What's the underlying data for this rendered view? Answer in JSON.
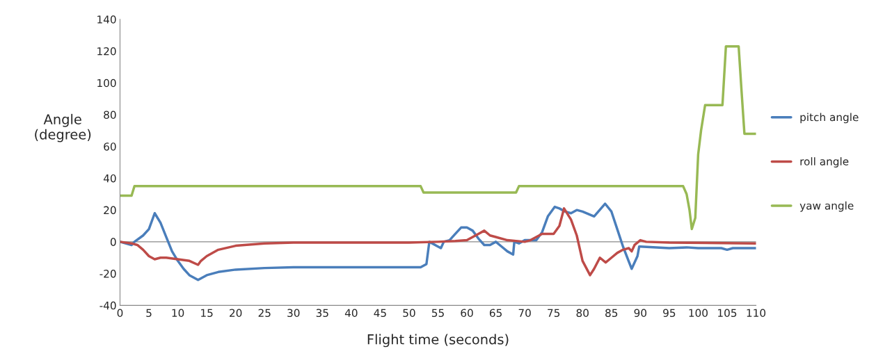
{
  "chart_data": {
    "type": "line",
    "xlabel": "Flight time (seconds)",
    "ylabel": "Angle\n(degree)",
    "xlim": [
      0,
      110
    ],
    "xticks": [
      0,
      5,
      10,
      15,
      20,
      25,
      30,
      35,
      40,
      45,
      50,
      55,
      60,
      65,
      70,
      75,
      80,
      85,
      90,
      95,
      100,
      105,
      110
    ],
    "ylim": [
      -40,
      140
    ],
    "yticks": [
      -40,
      -20,
      0,
      20,
      40,
      60,
      80,
      100,
      120,
      140
    ],
    "grid": false,
    "ref_lines": [
      {
        "axis": "y",
        "value": 0,
        "color": "#888888"
      }
    ],
    "legend": "right",
    "marker": "none",
    "line_style": "solid",
    "series": [
      {
        "name": "pitch angle",
        "color": "#4a7ebb",
        "x": [
          0,
          2,
          2.5,
          4,
          5,
          6,
          7,
          8,
          9,
          10,
          11,
          12,
          13.5,
          15,
          17,
          20,
          25,
          30,
          40,
          48,
          52,
          53,
          53.5,
          55,
          55.5,
          56,
          57,
          58,
          59,
          60,
          61,
          62,
          63,
          64,
          65,
          66,
          67,
          68,
          68.2,
          69,
          70,
          72,
          73,
          74,
          75.2,
          76,
          77,
          78,
          79,
          80,
          82,
          83.9,
          85,
          86,
          87,
          88.5,
          89.5,
          89.8,
          90,
          95,
          98,
          100,
          104,
          105,
          106,
          110
        ],
        "values": [
          0,
          -2,
          0,
          4,
          8,
          18,
          12,
          3,
          -6,
          -12,
          -17,
          -21,
          -24,
          -21,
          -19,
          -17.5,
          -16.5,
          -16,
          -16,
          -16,
          -16,
          -14,
          0,
          -3,
          -4,
          0,
          1,
          5,
          9,
          9,
          7,
          2,
          -2,
          -2,
          0,
          -3,
          -6,
          -8,
          0,
          -1,
          1,
          1,
          6,
          16,
          22,
          21,
          19,
          18,
          20,
          19,
          16,
          24,
          19,
          8,
          -3,
          -17,
          -9,
          -3,
          -3,
          -4,
          -3.5,
          -4,
          -4,
          -5,
          -4,
          -4
        ]
      },
      {
        "name": "roll angle",
        "color": "#be4b48",
        "x": [
          0,
          2,
          3,
          4,
          5,
          6,
          7,
          8,
          10,
          12,
          13.5,
          14,
          15,
          17,
          20,
          25,
          30,
          50,
          55,
          58,
          60,
          61,
          62,
          63,
          64,
          65,
          67,
          70,
          71,
          72,
          73,
          75,
          76,
          76.8,
          78,
          79,
          80,
          81.3,
          82,
          83,
          84,
          85,
          86,
          87,
          88,
          88.5,
          89,
          90,
          91,
          95,
          110
        ],
        "values": [
          0,
          -1,
          -2,
          -5,
          -9,
          -11,
          -10,
          -10,
          -11,
          -12,
          -14.5,
          -12,
          -9,
          -5,
          -2.5,
          -1,
          -0.5,
          -0.5,
          0,
          0.5,
          1,
          3,
          5,
          7,
          4,
          3,
          1,
          0,
          1,
          3,
          5,
          5,
          10,
          21,
          14,
          4,
          -12,
          -21,
          -17,
          -10,
          -13,
          -10,
          -7,
          -5,
          -4,
          -6,
          -2,
          1,
          0,
          -0.5,
          -1
        ]
      },
      {
        "name": "yaw angle",
        "color": "#98b954",
        "x": [
          0,
          2,
          2.5,
          52,
          52.5,
          68.5,
          69,
          97.4,
          98,
          98.5,
          98.9,
          99.5,
          100,
          100.5,
          101.2,
          104.2,
          104.8,
          107,
          107.5,
          108,
          110
        ],
        "values": [
          29,
          29,
          35,
          35,
          31,
          31,
          35,
          35,
          30,
          20,
          8,
          15,
          55,
          70,
          86,
          86,
          123,
          123,
          95,
          68,
          68
        ]
      }
    ]
  }
}
